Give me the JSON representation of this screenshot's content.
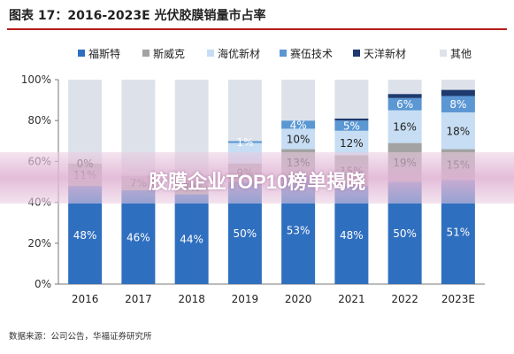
{
  "title": "图表 17：2016-2023E 光伏胶膜销量市占率",
  "source": "数据来源：公司公告，华福证券研究所",
  "banner": "胶膜企业TOP10榜单揭晓",
  "legend_icons": [
    "square-swatch"
  ],
  "chart_data": {
    "type": "bar",
    "stacked": true,
    "categories": [
      "2016",
      "2017",
      "2018",
      "2019",
      "2020",
      "2021",
      "2022",
      "2023E"
    ],
    "ylim": [
      0,
      100
    ],
    "ytick_labels": [
      "0%",
      "20%",
      "40%",
      "60%",
      "80%",
      "100%"
    ],
    "grid": false,
    "legend_position": "top",
    "series": [
      {
        "name": "福斯特",
        "color": "#2f6fbf",
        "values": [
          48,
          46,
          44,
          50,
          53,
          48,
          50,
          51
        ],
        "labels": [
          "48%",
          "46%",
          "44%",
          "50%",
          "53%",
          "48%",
          "50%",
          "51%"
        ]
      },
      {
        "name": "斯威克",
        "color": "#a3a3a3",
        "values": [
          11,
          7,
          7,
          9,
          13,
          15,
          19,
          15
        ],
        "labels": [
          "11%",
          "7%",
          "7%",
          "9%",
          "13%",
          "15%",
          "19%",
          "15%"
        ]
      },
      {
        "name": "海优新材",
        "color": "#c6ddf3",
        "values": [
          0,
          0,
          0,
          10,
          10,
          12,
          16,
          18
        ],
        "labels": [
          "0%",
          "",
          "",
          "",
          "10%",
          "12%",
          "16%",
          "18%"
        ]
      },
      {
        "name": "赛伍技术",
        "color": "#5b97d3",
        "values": [
          0,
          0,
          0,
          1,
          4,
          5,
          6,
          8
        ],
        "labels": [
          "",
          "",
          "",
          "1%",
          "4%",
          "5%",
          "6%",
          "8%"
        ]
      },
      {
        "name": "天洋新材",
        "color": "#1e3a6e",
        "values": [
          0,
          0,
          0,
          0,
          0,
          1,
          2,
          3
        ],
        "labels": [
          "",
          "",
          "",
          "",
          "",
          "",
          "",
          ""
        ]
      },
      {
        "name": "其他",
        "color": "#dde2ea",
        "values": [
          41,
          47,
          49,
          30,
          20,
          19,
          7,
          5
        ],
        "labels": [
          "",
          "",
          "",
          "",
          "",
          "",
          "",
          ""
        ]
      }
    ]
  }
}
